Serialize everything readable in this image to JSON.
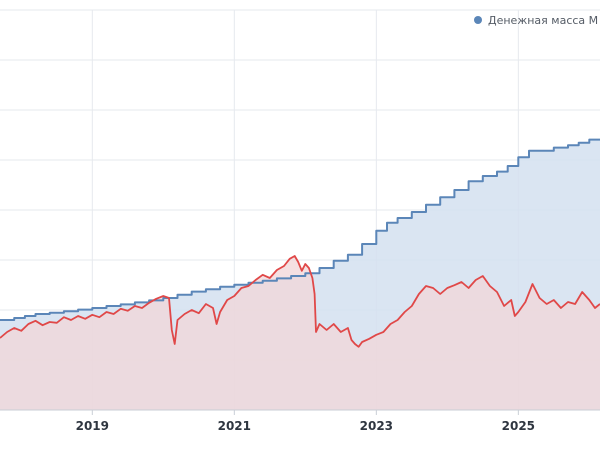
{
  "chart_data": {
    "type": "line",
    "title": "",
    "xlabel": "",
    "ylabel": "",
    "xlim": [
      2017.7,
      2026.15
    ],
    "ylim": [
      0,
      100
    ],
    "grid": true,
    "legend_position": "top-right",
    "x_ticks": [
      {
        "value": 2019,
        "label": "2019"
      },
      {
        "value": 2021,
        "label": "2021"
      },
      {
        "value": 2023,
        "label": "2023"
      },
      {
        "value": 2025,
        "label": "2025"
      }
    ],
    "series": [
      {
        "name": "Денежная масса М",
        "legend_label": "Денежная масса М",
        "color": "#5b86b8",
        "fill": "#d4e0f0",
        "style": "step",
        "points": [
          [
            2017.7,
            22.5
          ],
          [
            2017.9,
            23.0
          ],
          [
            2018.05,
            23.5
          ],
          [
            2018.2,
            24.0
          ],
          [
            2018.4,
            24.3
          ],
          [
            2018.6,
            24.7
          ],
          [
            2018.8,
            25.1
          ],
          [
            2019.0,
            25.5
          ],
          [
            2019.2,
            26.0
          ],
          [
            2019.4,
            26.4
          ],
          [
            2019.6,
            26.9
          ],
          [
            2019.8,
            27.4
          ],
          [
            2020.0,
            28.0
          ],
          [
            2020.2,
            28.8
          ],
          [
            2020.4,
            29.6
          ],
          [
            2020.6,
            30.2
          ],
          [
            2020.8,
            30.8
          ],
          [
            2021.0,
            31.3
          ],
          [
            2021.2,
            31.8
          ],
          [
            2021.4,
            32.3
          ],
          [
            2021.6,
            32.9
          ],
          [
            2021.8,
            33.5
          ],
          [
            2022.0,
            34.2
          ],
          [
            2022.2,
            35.5
          ],
          [
            2022.4,
            37.3
          ],
          [
            2022.6,
            38.8
          ],
          [
            2022.8,
            41.5
          ],
          [
            2023.0,
            44.8
          ],
          [
            2023.15,
            46.8
          ],
          [
            2023.3,
            48.0
          ],
          [
            2023.5,
            49.5
          ],
          [
            2023.7,
            51.3
          ],
          [
            2023.9,
            53.2
          ],
          [
            2024.1,
            55.0
          ],
          [
            2024.3,
            57.2
          ],
          [
            2024.5,
            58.5
          ],
          [
            2024.7,
            59.6
          ],
          [
            2024.85,
            61.0
          ],
          [
            2025.0,
            63.2
          ],
          [
            2025.15,
            64.8
          ],
          [
            2025.3,
            64.8
          ],
          [
            2025.5,
            65.6
          ],
          [
            2025.7,
            66.2
          ],
          [
            2025.85,
            66.8
          ],
          [
            2026.0,
            67.6
          ],
          [
            2026.15,
            67.6
          ]
        ]
      },
      {
        "name": "",
        "color": "#e04848",
        "fill": "#f2d6d8",
        "style": "line",
        "points": [
          [
            2017.7,
            18.0
          ],
          [
            2017.8,
            19.5
          ],
          [
            2017.9,
            20.5
          ],
          [
            2018.0,
            19.8
          ],
          [
            2018.1,
            21.5
          ],
          [
            2018.2,
            22.3
          ],
          [
            2018.3,
            21.2
          ],
          [
            2018.4,
            22.0
          ],
          [
            2018.5,
            21.8
          ],
          [
            2018.6,
            23.2
          ],
          [
            2018.7,
            22.5
          ],
          [
            2018.8,
            23.5
          ],
          [
            2018.9,
            22.8
          ],
          [
            2019.0,
            23.8
          ],
          [
            2019.1,
            23.2
          ],
          [
            2019.2,
            24.5
          ],
          [
            2019.3,
            24.0
          ],
          [
            2019.4,
            25.3
          ],
          [
            2019.5,
            24.8
          ],
          [
            2019.6,
            26.0
          ],
          [
            2019.7,
            25.5
          ],
          [
            2019.8,
            26.8
          ],
          [
            2019.9,
            27.8
          ],
          [
            2020.0,
            28.5
          ],
          [
            2020.08,
            28.0
          ],
          [
            2020.12,
            20.0
          ],
          [
            2020.16,
            16.5
          ],
          [
            2020.2,
            22.5
          ],
          [
            2020.3,
            24.0
          ],
          [
            2020.4,
            25.0
          ],
          [
            2020.5,
            24.2
          ],
          [
            2020.6,
            26.5
          ],
          [
            2020.7,
            25.5
          ],
          [
            2020.75,
            21.5
          ],
          [
            2020.8,
            24.5
          ],
          [
            2020.9,
            27.5
          ],
          [
            2021.0,
            28.5
          ],
          [
            2021.1,
            30.5
          ],
          [
            2021.2,
            31.0
          ],
          [
            2021.3,
            32.5
          ],
          [
            2021.4,
            33.8
          ],
          [
            2021.5,
            33.0
          ],
          [
            2021.6,
            35.0
          ],
          [
            2021.7,
            36.0
          ],
          [
            2021.78,
            37.8
          ],
          [
            2021.85,
            38.5
          ],
          [
            2021.9,
            37.0
          ],
          [
            2021.95,
            34.8
          ],
          [
            2022.0,
            36.5
          ],
          [
            2022.05,
            35.5
          ],
          [
            2022.1,
            33.0
          ],
          [
            2022.13,
            29.0
          ],
          [
            2022.15,
            19.5
          ],
          [
            2022.2,
            21.5
          ],
          [
            2022.3,
            20.0
          ],
          [
            2022.4,
            21.5
          ],
          [
            2022.5,
            19.5
          ],
          [
            2022.6,
            20.5
          ],
          [
            2022.65,
            17.5
          ],
          [
            2022.7,
            16.5
          ],
          [
            2022.75,
            15.8
          ],
          [
            2022.8,
            17.0
          ],
          [
            2022.9,
            17.8
          ],
          [
            2023.0,
            18.8
          ],
          [
            2023.1,
            19.5
          ],
          [
            2023.2,
            21.5
          ],
          [
            2023.3,
            22.5
          ],
          [
            2023.4,
            24.5
          ],
          [
            2023.5,
            26.0
          ],
          [
            2023.6,
            29.0
          ],
          [
            2023.7,
            31.0
          ],
          [
            2023.8,
            30.5
          ],
          [
            2023.9,
            29.0
          ],
          [
            2024.0,
            30.5
          ],
          [
            2024.1,
            31.2
          ],
          [
            2024.2,
            32.0
          ],
          [
            2024.3,
            30.5
          ],
          [
            2024.4,
            32.5
          ],
          [
            2024.5,
            33.5
          ],
          [
            2024.6,
            31.0
          ],
          [
            2024.7,
            29.5
          ],
          [
            2024.8,
            26.0
          ],
          [
            2024.9,
            27.5
          ],
          [
            2024.95,
            23.5
          ],
          [
            2025.0,
            24.5
          ],
          [
            2025.1,
            27.0
          ],
          [
            2025.2,
            31.5
          ],
          [
            2025.3,
            28.0
          ],
          [
            2025.4,
            26.5
          ],
          [
            2025.5,
            27.5
          ],
          [
            2025.6,
            25.5
          ],
          [
            2025.7,
            27.0
          ],
          [
            2025.8,
            26.5
          ],
          [
            2025.9,
            29.5
          ],
          [
            2026.0,
            27.5
          ],
          [
            2026.08,
            25.5
          ],
          [
            2026.15,
            26.5
          ]
        ]
      }
    ]
  },
  "colors": {
    "grid": "#e6e9ee",
    "axis": "#c9ced6",
    "background": "#ffffff"
  }
}
